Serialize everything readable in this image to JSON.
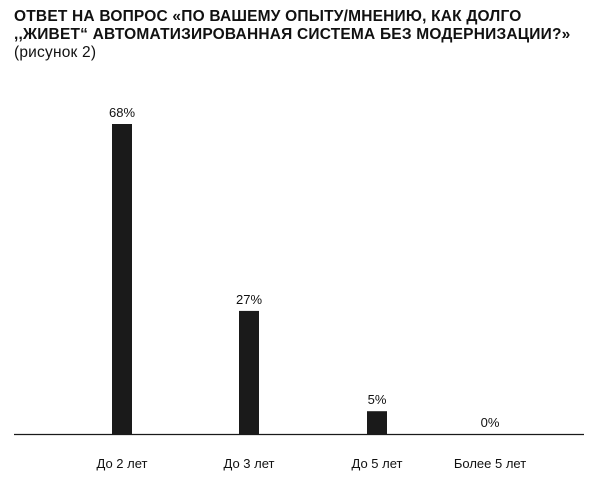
{
  "header": {
    "title_bold": "Ответ на вопрос «По вашему опыту/мнению, как долго ,,живет“ автоматизированная система без модернизации?»",
    "title_suffix": "(рисунок 2)"
  },
  "chart_data": {
    "type": "bar",
    "categories": [
      "До 2 лет",
      "До 3 лет",
      "До 5 лет",
      "Более 5 лет"
    ],
    "values": [
      68,
      27,
      5,
      0
    ],
    "value_labels": [
      "68%",
      "27%",
      "5%",
      "0%"
    ],
    "ylim": [
      0,
      70
    ],
    "grid": false,
    "legend": "none",
    "bar_color": "#1a1a1a",
    "axis_color": "#1a1a1a"
  }
}
